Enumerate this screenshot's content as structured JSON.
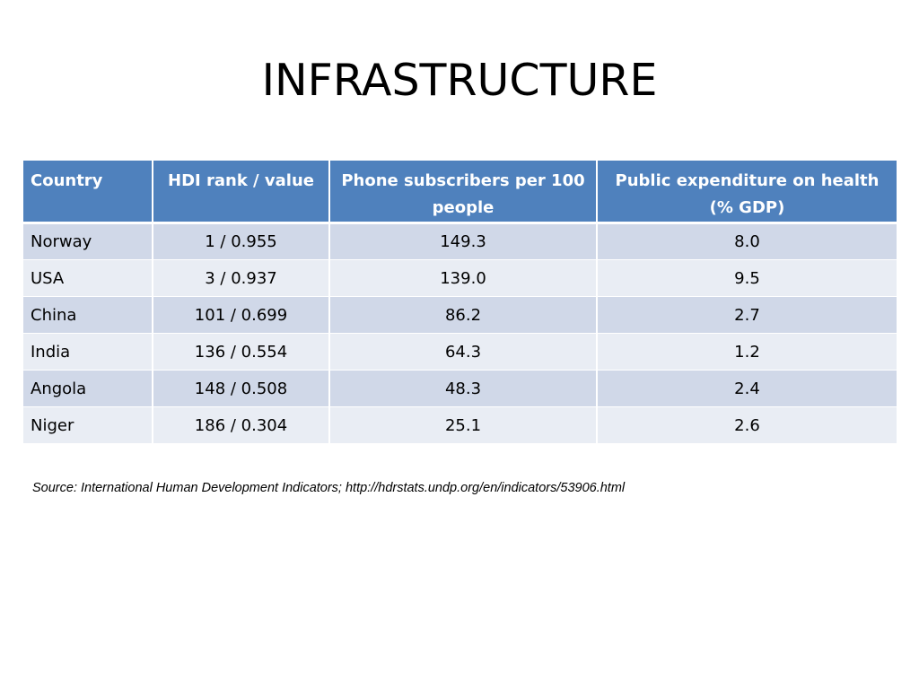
{
  "slide": {
    "title": "INFRASTRUCTURE"
  },
  "table": {
    "headers": [
      "Country",
      "HDI rank / value",
      "Phone subscribers per 100 people",
      "Public expenditure on health (% GDP)"
    ],
    "rows": [
      [
        "Norway",
        "1 / 0.955",
        "149.3",
        "8.0"
      ],
      [
        "USA",
        "3 / 0.937",
        "139.0",
        "9.5"
      ],
      [
        "China",
        "101 / 0.699",
        "86.2",
        "2.7"
      ],
      [
        "India",
        "136 / 0.554",
        "64.3",
        "1.2"
      ],
      [
        "Angola",
        "148 / 0.508",
        "48.3",
        "2.4"
      ],
      [
        "Niger",
        "186 / 0.304",
        "25.1",
        "2.6"
      ]
    ]
  },
  "source": {
    "text": "Source: International Human Development Indicators; http://hdrstats.undp.org/en/indicators/53906.html"
  },
  "colors": {
    "header_bg": "#4f81bd",
    "row_odd_bg": "#d0d8e8",
    "row_even_bg": "#e9edf4"
  }
}
